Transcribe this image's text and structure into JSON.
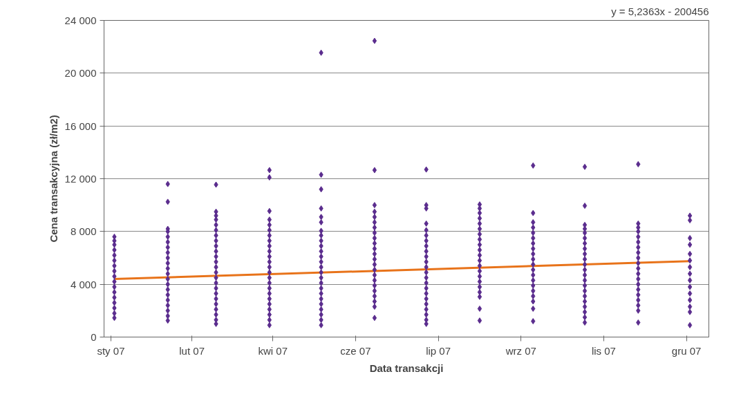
{
  "chart_data": {
    "type": "scatter",
    "xlabel": "Data transakcji",
    "ylabel": "Cena transakcyjna (zł/m2)",
    "annotations": [
      "y = 5,2363x - 200456"
    ],
    "xlim": [
      "2006-12-26",
      "2007-12-12"
    ],
    "xticks": [
      {
        "value": "2006-12-30",
        "label": "sty 07"
      },
      {
        "value": "2007-02-15",
        "label": "lut 07"
      },
      {
        "value": "2007-04-03",
        "label": "kwi 07"
      },
      {
        "value": "2007-05-21",
        "label": "cze 07"
      },
      {
        "value": "2007-07-08",
        "label": "lip 07"
      },
      {
        "value": "2007-08-25",
        "label": "wrz 07"
      },
      {
        "value": "2007-10-12",
        "label": "lis 07"
      },
      {
        "value": "2007-11-29",
        "label": "gru 07"
      }
    ],
    "ylim": [
      0,
      24000
    ],
    "yticks": [
      {
        "value": 0,
        "label": "0"
      },
      {
        "value": 4000,
        "label": "4 000"
      },
      {
        "value": 8000,
        "label": "8 000"
      },
      {
        "value": 12000,
        "label": "12 000"
      },
      {
        "value": 16000,
        "label": "16 000"
      },
      {
        "value": 20000,
        "label": "20 000"
      },
      {
        "value": 24000,
        "label": "24 000"
      }
    ],
    "grid": "y",
    "marker": "diamond",
    "series": [
      {
        "color": "#5b2d8e",
        "x": [
          "2007-01",
          "2007-01",
          "2007-01",
          "2007-01",
          "2007-01",
          "2007-01",
          "2007-01",
          "2007-01",
          "2007-01",
          "2007-01",
          "2007-01",
          "2007-01",
          "2007-01",
          "2007-01",
          "2007-01",
          "2007-01",
          "2007-01"
        ],
        "values": [
          1450,
          1800,
          2200,
          2600,
          3000,
          3400,
          3800,
          4200,
          4600,
          5000,
          5400,
          5800,
          6200,
          6600,
          7000,
          7300,
          7600
        ]
      },
      {
        "color": "#5b2d8e",
        "x": [
          "2007-02",
          "2007-02",
          "2007-02",
          "2007-02",
          "2007-02",
          "2007-02",
          "2007-02",
          "2007-02",
          "2007-02",
          "2007-02",
          "2007-02",
          "2007-02",
          "2007-02",
          "2007-02",
          "2007-02",
          "2007-02",
          "2007-02",
          "2007-02",
          "2007-02",
          "2007-02",
          "2007-02"
        ],
        "values": [
          1250,
          1600,
          2000,
          2400,
          2800,
          3200,
          3600,
          4000,
          4400,
          4800,
          5200,
          5600,
          6000,
          6400,
          6800,
          7200,
          7600,
          8000,
          8200,
          10250,
          11600
        ]
      },
      {
        "color": "#5b2d8e",
        "x": [
          "2007-03",
          "2007-03",
          "2007-03",
          "2007-03",
          "2007-03",
          "2007-03",
          "2007-03",
          "2007-03",
          "2007-03",
          "2007-03",
          "2007-03",
          "2007-03",
          "2007-03",
          "2007-03",
          "2007-03",
          "2007-03",
          "2007-03",
          "2007-03",
          "2007-03",
          "2007-03",
          "2007-03",
          "2007-03",
          "2007-03",
          "2007-03"
        ],
        "values": [
          1000,
          1300,
          1700,
          2100,
          2500,
          2900,
          3300,
          3700,
          4100,
          4500,
          4900,
          5300,
          5700,
          6100,
          6500,
          6900,
          7300,
          7700,
          8100,
          8500,
          8900,
          9200,
          9500,
          11550
        ]
      },
      {
        "color": "#5b2d8e",
        "x": [
          "2007-04",
          "2007-04",
          "2007-04",
          "2007-04",
          "2007-04",
          "2007-04",
          "2007-04",
          "2007-04",
          "2007-04",
          "2007-04",
          "2007-04",
          "2007-04",
          "2007-04",
          "2007-04",
          "2007-04",
          "2007-04",
          "2007-04",
          "2007-04",
          "2007-04",
          "2007-04",
          "2007-04",
          "2007-04",
          "2007-04",
          "2007-04"
        ],
        "values": [
          900,
          1300,
          1700,
          2100,
          2500,
          2900,
          3300,
          3700,
          4100,
          4500,
          4900,
          5300,
          5700,
          6100,
          6500,
          6900,
          7300,
          7700,
          8100,
          8500,
          8900,
          9550,
          12100,
          12650
        ]
      },
      {
        "color": "#5b2d8e",
        "x": [
          "2007-05",
          "2007-05",
          "2007-05",
          "2007-05",
          "2007-05",
          "2007-05",
          "2007-05",
          "2007-05",
          "2007-05",
          "2007-05",
          "2007-05",
          "2007-05",
          "2007-05",
          "2007-05",
          "2007-05",
          "2007-05",
          "2007-05",
          "2007-05",
          "2007-05",
          "2007-05",
          "2007-05",
          "2007-05",
          "2007-05",
          "2007-05",
          "2007-05"
        ],
        "values": [
          900,
          1300,
          1700,
          2100,
          2500,
          2900,
          3300,
          3700,
          4100,
          4500,
          4900,
          5300,
          5700,
          6100,
          6500,
          6900,
          7300,
          7700,
          8050,
          8700,
          9100,
          9750,
          11200,
          12300,
          21550
        ]
      },
      {
        "color": "#5b2d8e",
        "x": [
          "2007-06",
          "2007-06",
          "2007-06",
          "2007-06",
          "2007-06",
          "2007-06",
          "2007-06",
          "2007-06",
          "2007-06",
          "2007-06",
          "2007-06",
          "2007-06",
          "2007-06",
          "2007-06",
          "2007-06",
          "2007-06",
          "2007-06",
          "2007-06",
          "2007-06",
          "2007-06",
          "2007-06",
          "2007-06",
          "2007-06"
        ],
        "values": [
          1450,
          2300,
          2700,
          3100,
          3500,
          3900,
          4300,
          4700,
          5100,
          5500,
          5900,
          6300,
          6700,
          7100,
          7500,
          7900,
          8300,
          8700,
          9100,
          9500,
          10000,
          12650,
          22450
        ]
      },
      {
        "color": "#5b2d8e",
        "x": [
          "2007-07",
          "2007-07",
          "2007-07",
          "2007-07",
          "2007-07",
          "2007-07",
          "2007-07",
          "2007-07",
          "2007-07",
          "2007-07",
          "2007-07",
          "2007-07",
          "2007-07",
          "2007-07",
          "2007-07",
          "2007-07",
          "2007-07",
          "2007-07",
          "2007-07",
          "2007-07",
          "2007-07",
          "2007-07",
          "2007-07"
        ],
        "values": [
          1000,
          1300,
          1700,
          2100,
          2500,
          2900,
          3300,
          3700,
          4100,
          4500,
          4900,
          5300,
          5700,
          6100,
          6500,
          6900,
          7300,
          7700,
          8100,
          8600,
          9750,
          10000,
          12700
        ]
      },
      {
        "color": "#5b2d8e",
        "x": [
          "2007-08",
          "2007-08",
          "2007-08",
          "2007-08",
          "2007-08",
          "2007-08",
          "2007-08",
          "2007-08",
          "2007-08",
          "2007-08",
          "2007-08",
          "2007-08",
          "2007-08",
          "2007-08",
          "2007-08",
          "2007-08",
          "2007-08",
          "2007-08",
          "2007-08",
          "2007-08",
          "2007-08"
        ],
        "values": [
          1250,
          2150,
          3050,
          3400,
          3800,
          4200,
          4600,
          5000,
          5400,
          5800,
          6200,
          6600,
          7000,
          7400,
          7800,
          8200,
          8600,
          9000,
          9400,
          9750,
          10050
        ]
      },
      {
        "color": "#5b2d8e",
        "x": [
          "2007-09",
          "2007-09",
          "2007-09",
          "2007-09",
          "2007-09",
          "2007-09",
          "2007-09",
          "2007-09",
          "2007-09",
          "2007-09",
          "2007-09",
          "2007-09",
          "2007-09",
          "2007-09",
          "2007-09",
          "2007-09",
          "2007-09",
          "2007-09",
          "2007-09",
          "2007-09"
        ],
        "values": [
          1200,
          2150,
          2700,
          3100,
          3500,
          3900,
          4300,
          4700,
          5100,
          5500,
          5900,
          6300,
          6700,
          7100,
          7500,
          7900,
          8300,
          8700,
          9400,
          13000
        ]
      },
      {
        "color": "#5b2d8e",
        "x": [
          "2007-10",
          "2007-10",
          "2007-10",
          "2007-10",
          "2007-10",
          "2007-10",
          "2007-10",
          "2007-10",
          "2007-10",
          "2007-10",
          "2007-10",
          "2007-10",
          "2007-10",
          "2007-10",
          "2007-10",
          "2007-10",
          "2007-10",
          "2007-10",
          "2007-10",
          "2007-10",
          "2007-10",
          "2007-10"
        ],
        "values": [
          1100,
          1500,
          1900,
          2300,
          2700,
          3100,
          3500,
          3900,
          4300,
          4700,
          5100,
          5500,
          5900,
          6300,
          6700,
          7100,
          7500,
          7900,
          8200,
          8500,
          9950,
          12900
        ]
      },
      {
        "color": "#5b2d8e",
        "x": [
          "2007-11",
          "2007-11",
          "2007-11",
          "2007-11",
          "2007-11",
          "2007-11",
          "2007-11",
          "2007-11",
          "2007-11",
          "2007-11",
          "2007-11",
          "2007-11",
          "2007-11",
          "2007-11",
          "2007-11",
          "2007-11",
          "2007-11",
          "2007-11",
          "2007-11",
          "2007-11"
        ],
        "values": [
          1100,
          2000,
          2400,
          2800,
          3200,
          3600,
          4000,
          4400,
          4800,
          5200,
          5600,
          6000,
          6400,
          6800,
          7200,
          7600,
          8000,
          8300,
          8600,
          13100
        ]
      },
      {
        "color": "#5b2d8e",
        "x": [
          "2007-12",
          "2007-12",
          "2007-12",
          "2007-12",
          "2007-12",
          "2007-12",
          "2007-12",
          "2007-12",
          "2007-12",
          "2007-12",
          "2007-12",
          "2007-12",
          "2007-12",
          "2007-12",
          "2007-12"
        ],
        "values": [
          900,
          1900,
          2300,
          2800,
          3300,
          3800,
          4300,
          4800,
          5300,
          5800,
          6300,
          7000,
          7500,
          8850,
          9200
        ]
      },
      {
        "type": "line",
        "marker": "none",
        "color": "#e8731a",
        "x": [
          "2007-01-01",
          "2007-12-01"
        ],
        "values": [
          4400,
          5750
        ]
      }
    ]
  }
}
